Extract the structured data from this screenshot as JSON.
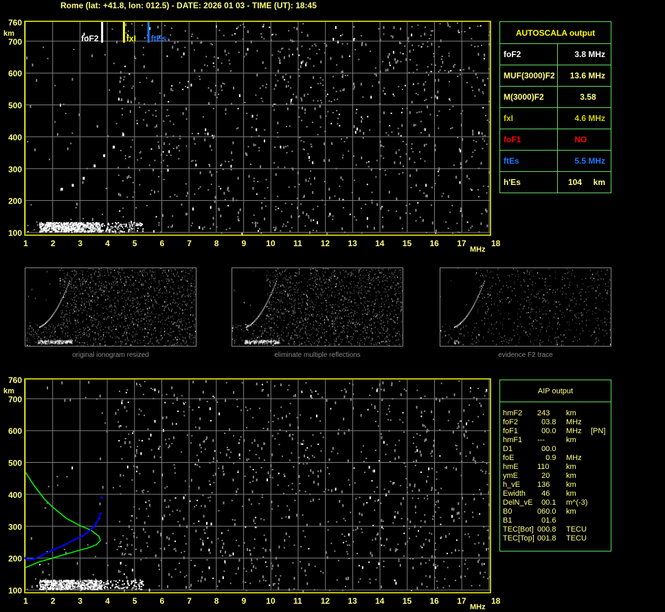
{
  "header": "Rome (lat: +41.8, lon: 012.5) - DATE: 2026 01 03 - TIME (UT): 18:45",
  "colors": {
    "foF2": "#ffffff",
    "fxI": "#ffff00",
    "ftEs": "#1e78ff",
    "foF1": "#ff0000",
    "axis": "#ffff80",
    "frame": "#ffff00",
    "grid": "#808080",
    "table_border": "#60e060",
    "profile": "#00ff00",
    "trace": "#0000ff"
  },
  "chart_data": [
    {
      "type": "scatter",
      "title": "",
      "xlabel": "MHz",
      "ylabel": "km",
      "xlim": [
        1,
        18
      ],
      "ylim": [
        100,
        760
      ],
      "grid": true,
      "x_ticks": [
        "1",
        "2",
        "3",
        "4",
        "5",
        "6",
        "7",
        "8",
        "9",
        "10",
        "11",
        "12",
        "13",
        "14",
        "15",
        "16",
        "17",
        "18"
      ],
      "y_ticks": [
        "760",
        "700",
        "600",
        "500",
        "400",
        "300",
        "200",
        "100"
      ],
      "markers": [
        {
          "label": "foF2",
          "freq": 3.8
        },
        {
          "label": "fxI",
          "freq": 4.6
        },
        {
          "label": "ftEs",
          "freq": 5.5
        }
      ],
      "f2_trace": {
        "x": [
          2.3,
          2.7,
          3.1,
          3.5,
          3.85,
          4.2,
          4.55
        ],
        "y": [
          240,
          252,
          274,
          313,
          345,
          372,
          411
        ]
      },
      "es_band": {
        "x": [
          1.5,
          5.3
        ],
        "y": [
          100,
          130
        ]
      }
    },
    {
      "type": "line",
      "title": "",
      "xlabel": "MHz",
      "ylabel": "km",
      "xlim": [
        1,
        18
      ],
      "ylim": [
        100,
        760
      ],
      "grid": true,
      "x_ticks": [
        "1",
        "2",
        "3",
        "4",
        "5",
        "6",
        "7",
        "8",
        "9",
        "10",
        "11",
        "12",
        "13",
        "14",
        "15",
        "16",
        "17",
        "18"
      ],
      "y_ticks": [
        "760",
        "700",
        "600",
        "500",
        "400",
        "300",
        "200",
        "100"
      ],
      "series": [
        {
          "color": "#00ff00",
          "x": [
            1,
            1.3,
            1.7,
            2,
            2.5,
            3,
            3.4,
            3.7,
            3.75,
            3.6,
            3.3,
            3,
            2.5,
            2,
            1.5,
            1
          ],
          "y": [
            470,
            430,
            385,
            360,
            325,
            302,
            288,
            268,
            255,
            242,
            232,
            225,
            213,
            200,
            188,
            170
          ]
        },
        {
          "color": "#0000ff",
          "x": [
            1,
            1.1,
            1.3,
            1.6,
            2,
            2.4,
            2.8,
            3.1,
            3.3,
            3.5,
            3.6,
            3.7,
            3.75,
            3.8
          ],
          "y": [
            200,
            195,
            197,
            208,
            225,
            240,
            258,
            270,
            283,
            297,
            310,
            325,
            340,
            390
          ]
        }
      ]
    }
  ],
  "thumbnails": [
    {
      "caption": "original ionogram resized"
    },
    {
      "caption": "eliminate multiple reflections"
    },
    {
      "caption": "evidence F2 trace"
    }
  ],
  "autoscala": {
    "title": "AUTOSCALA output",
    "rows": [
      {
        "key": "foF2",
        "value": "3.8 MHz",
        "color": "#ffffff"
      },
      {
        "key": "MUF(3000)F2",
        "value": "13.6 MHz",
        "color": "#ffff80"
      },
      {
        "key": "M(3000)F2",
        "value": "3.58    ",
        "color": "#ffff80"
      },
      {
        "key": "fxI",
        "value": "4.6 MHz",
        "color": "#d0d000"
      },
      {
        "key": "foF1",
        "value": "NO        ",
        "color": "#ff0000"
      },
      {
        "key": "ftEs",
        "value": "5.5 MHz",
        "color": "#1e78ff"
      },
      {
        "key": "h'Es",
        "value": "104     km",
        "color": "#ffff80"
      }
    ]
  },
  "aip": {
    "title": "AIP output",
    "rows": [
      [
        "hmF2",
        "243",
        "km",
        ""
      ],
      [
        "foF2",
        "  03.8",
        "MHz",
        ""
      ],
      [
        "foF1",
        "  00.0",
        "MHz",
        "[PN]"
      ],
      [
        "hmF1",
        "---",
        "km",
        ""
      ],
      [
        "D1",
        "  00.0",
        "",
        ""
      ],
      [
        "foE",
        "    0.9",
        "MHz",
        ""
      ],
      [
        "hmE",
        "110",
        "km",
        ""
      ],
      [
        "ymE",
        "  20",
        "km",
        ""
      ],
      [
        "h_vE",
        "136",
        "km",
        ""
      ],
      [
        "Ewidth",
        "  46",
        "km",
        ""
      ],
      [
        "DelN_vE",
        "  00.1",
        "m^(-3)",
        ""
      ],
      [
        "B0",
        "060.0",
        "km",
        ""
      ],
      [
        "B1",
        "  01.6",
        "",
        ""
      ],
      [
        "TEC[Bot]",
        "000.8",
        "TECU",
        ""
      ],
      [
        "TEC[Top]",
        "001.8",
        "TECU",
        ""
      ]
    ]
  }
}
